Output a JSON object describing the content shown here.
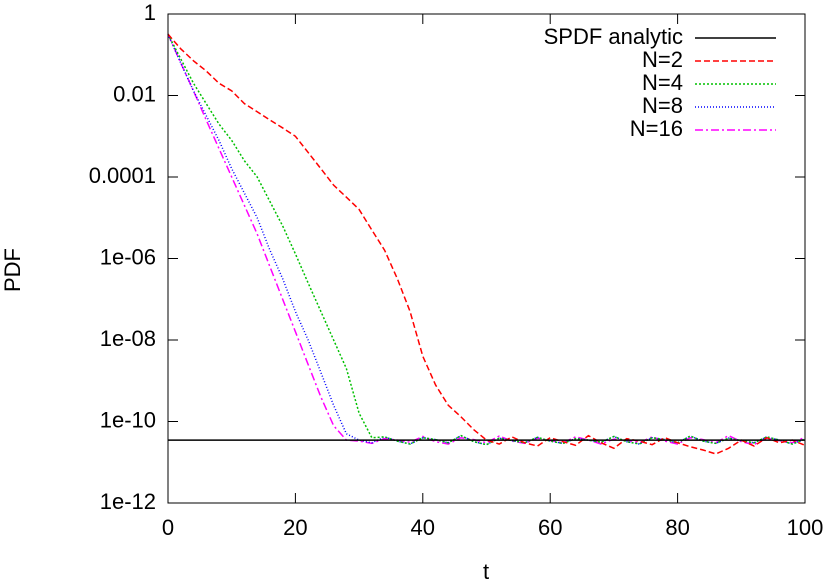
{
  "chart_data": {
    "type": "line",
    "xlabel": "t",
    "ylabel": "PDF",
    "ylog": true,
    "legend": "top right",
    "xlim": [
      0,
      100
    ],
    "xticks": [
      0,
      20,
      40,
      60,
      80,
      100
    ],
    "ylim": [
      1e-12,
      1
    ],
    "yticks": [
      1,
      0.01,
      0.0001,
      {
        "value": 1e-06,
        "label": "1e-06"
      },
      {
        "value": 1e-08,
        "label": "1e-08"
      },
      {
        "value": 1e-10,
        "label": "1e-10"
      },
      {
        "value": 1e-12,
        "label": "1e-12"
      }
    ],
    "x": [
      0,
      2,
      4,
      6,
      8,
      10,
      12,
      14,
      16,
      18,
      20,
      22,
      24,
      26,
      28,
      30,
      32,
      34,
      36,
      38,
      40,
      42,
      44,
      46,
      48,
      50,
      52,
      54,
      56,
      58,
      60,
      62,
      64,
      66,
      68,
      70,
      72,
      74,
      76,
      78,
      80,
      82,
      84,
      86,
      88,
      90,
      92,
      94,
      96,
      98,
      100
    ],
    "series": [
      {
        "name": "SPDF analytic",
        "color": "#000000",
        "dash": "none",
        "values": [
          3.5e-11,
          3.5e-11,
          3.5e-11,
          3.5e-11,
          3.5e-11,
          3.5e-11,
          3.5e-11,
          3.5e-11,
          3.5e-11,
          3.5e-11,
          3.5e-11,
          3.5e-11,
          3.5e-11,
          3.5e-11,
          3.5e-11,
          3.5e-11,
          3.5e-11,
          3.5e-11,
          3.5e-11,
          3.5e-11,
          3.5e-11,
          3.5e-11,
          3.5e-11,
          3.5e-11,
          3.5e-11,
          3.5e-11,
          3.5e-11,
          3.5e-11,
          3.5e-11,
          3.5e-11,
          3.5e-11,
          3.5e-11,
          3.5e-11,
          3.5e-11,
          3.5e-11,
          3.5e-11,
          3.5e-11,
          3.5e-11,
          3.5e-11,
          3.5e-11,
          3.5e-11,
          3.5e-11,
          3.5e-11,
          3.5e-11,
          3.5e-11,
          3.5e-11,
          3.5e-11,
          3.5e-11,
          3.5e-11,
          3.5e-11,
          3.5e-11
        ]
      },
      {
        "name": "N=2",
        "color": "#ff0000",
        "dash": "6,3",
        "values": [
          0.32,
          0.14,
          0.071,
          0.04,
          0.02,
          0.013,
          0.0063,
          0.004,
          0.0025,
          0.0016,
          0.001,
          0.0004,
          0.00016,
          6.3e-05,
          3.2e-05,
          1.6e-05,
          5e-06,
          1.6e-06,
          3.2e-07,
          5e-08,
          4e-09,
          7.9e-10,
          2.5e-10,
          1.3e-10,
          6.3e-11,
          3.5e-11,
          2.8e-11,
          4.2e-11,
          3e-11,
          2.5e-11,
          4e-11,
          3.2e-11,
          2.6e-11,
          4.5e-11,
          3e-11,
          2.2e-11,
          3.8e-11,
          3.3e-11,
          2.7e-11,
          4e-11,
          3e-11,
          2.4e-11,
          2e-11,
          1.6e-11,
          2.2e-11,
          3.5e-11,
          2.5e-11,
          4e-11,
          3e-11,
          3.5e-11,
          2.6e-11
        ]
      },
      {
        "name": "N=4",
        "color": "#00c000",
        "dash": "2,2",
        "values": [
          0.32,
          0.079,
          0.02,
          0.0063,
          0.002,
          0.00079,
          0.00025,
          0.0001,
          2.5e-05,
          6.3e-06,
          1.3e-06,
          2.5e-07,
          5e-08,
          1e-08,
          2e-09,
          1.6e-10,
          4e-11,
          4.2e-11,
          3.3e-11,
          2.8e-11,
          4e-11,
          3.6e-11,
          3e-11,
          4.5e-11,
          3.2e-11,
          2.7e-11,
          3.9e-11,
          3.4e-11,
          3e-11,
          4.1e-11,
          3.3e-11,
          2.9e-11,
          3.8e-11,
          3.5e-11,
          3.1e-11,
          4.3e-11,
          3.2e-11,
          2.8e-11,
          4e-11,
          3.6e-11,
          3e-11,
          4.4e-11,
          3.3e-11,
          2.9e-11,
          3.9e-11,
          3.4e-11,
          3e-11,
          4.2e-11,
          3.5e-11,
          2.8e-11,
          3.7e-11
        ]
      },
      {
        "name": "N=8",
        "color": "#0000ff",
        "dash": "1,2",
        "values": [
          0.32,
          0.063,
          0.013,
          0.0032,
          0.00079,
          0.00016,
          4e-05,
          1e-05,
          1.6e-06,
          3.2e-07,
          5e-08,
          1e-08,
          1.6e-09,
          2.5e-10,
          5e-11,
          3.5e-11,
          3e-11,
          4.2e-11,
          3.3e-11,
          2.8e-11,
          4e-11,
          3.6e-11,
          3e-11,
          4.5e-11,
          3.2e-11,
          2.7e-11,
          3.9e-11,
          3.4e-11,
          3e-11,
          4.1e-11,
          3.3e-11,
          2.9e-11,
          3.8e-11,
          3.5e-11,
          3.1e-11,
          4.3e-11,
          3.2e-11,
          2.8e-11,
          4e-11,
          3.6e-11,
          3e-11,
          4.4e-11,
          3.3e-11,
          2.9e-11,
          3.9e-11,
          3.4e-11,
          3e-11,
          4.2e-11,
          3.5e-11,
          2.8e-11,
          3.7e-11
        ]
      },
      {
        "name": "N=16",
        "color": "#ff00ff",
        "dash": "8,3,2,3",
        "values": [
          0.32,
          0.063,
          0.013,
          0.0025,
          0.0005,
          0.0001,
          2e-05,
          4e-06,
          6.3e-07,
          1e-07,
          1.6e-08,
          2.5e-09,
          4e-10,
          7.9e-11,
          3.5e-11,
          3.3e-11,
          2.9e-11,
          3.8e-11,
          3.5e-11,
          3.1e-11,
          4.3e-11,
          3.2e-11,
          2.8e-11,
          4e-11,
          3.6e-11,
          3e-11,
          4.4e-11,
          3.3e-11,
          2.9e-11,
          3.9e-11,
          3.4e-11,
          3e-11,
          4.2e-11,
          3.5e-11,
          2.8e-11,
          3.7e-11,
          3.5e-11,
          3e-11,
          4.2e-11,
          3.3e-11,
          2.8e-11,
          4e-11,
          3.6e-11,
          3e-11,
          4.5e-11,
          3.2e-11,
          2.7e-11,
          3.9e-11,
          3.4e-11,
          3e-11,
          4.1e-11
        ]
      }
    ]
  }
}
